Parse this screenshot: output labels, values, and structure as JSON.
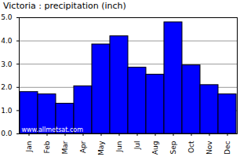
{
  "chart_data": {
    "type": "bar",
    "title": "Victoria : precipitation (inch)",
    "categories": [
      "Jan",
      "Feb",
      "Mar",
      "Apr",
      "May",
      "Jun",
      "Jul",
      "Aug",
      "Sep",
      "Oct",
      "Nov",
      "Dec"
    ],
    "values": [
      1.8,
      1.7,
      1.3,
      2.05,
      3.85,
      4.2,
      2.85,
      2.55,
      4.8,
      2.95,
      2.1,
      1.7
    ],
    "color": "#0000ff",
    "ylim": [
      0,
      5
    ],
    "yticks": [
      0,
      1,
      2,
      3,
      4,
      5
    ],
    "grid": true,
    "annotations": [
      "www.allmetsat.com"
    ]
  }
}
